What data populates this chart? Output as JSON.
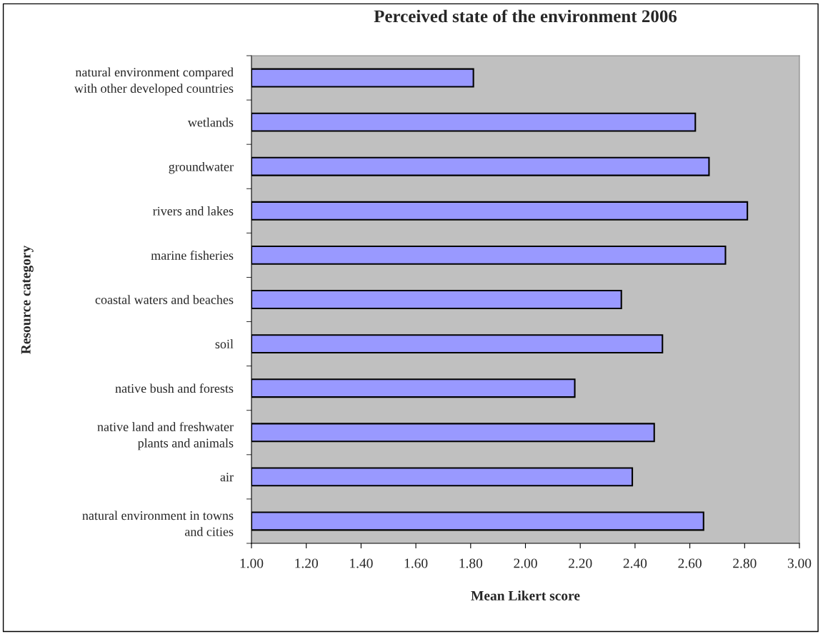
{
  "chart_data": {
    "type": "bar",
    "orientation": "horizontal",
    "title": "Perceived state of the environment 2006",
    "xlabel": "Mean Likert score",
    "ylabel": "Resource category",
    "categories": [
      "natural environment compared\nwith other developed countries",
      "wetlands",
      "groundwater",
      "rivers and lakes",
      "marine fisheries",
      "coastal waters and beaches",
      "soil",
      "native bush and forests",
      "native land and freshwater\nplants and animals",
      "air",
      "natural environment in towns\nand cities"
    ],
    "values": [
      1.81,
      2.62,
      2.67,
      2.81,
      2.73,
      2.35,
      2.5,
      2.18,
      2.47,
      2.39,
      2.65
    ],
    "color": "#9999ff",
    "xlim": [
      1.0,
      3.0
    ],
    "xticks": [
      {
        "value": 1.0,
        "label": "1.00"
      },
      {
        "value": 1.2,
        "label": "1.20"
      },
      {
        "value": 1.4,
        "label": "1.40"
      },
      {
        "value": 1.6,
        "label": "1.60"
      },
      {
        "value": 1.8,
        "label": "1.80"
      },
      {
        "value": 2.0,
        "label": "2.00"
      },
      {
        "value": 2.2,
        "label": "2.20"
      },
      {
        "value": 2.4,
        "label": "2.40"
      },
      {
        "value": 2.6,
        "label": "2.60"
      },
      {
        "value": 2.8,
        "label": "2.80"
      },
      {
        "value": 3.0,
        "label": "3.00"
      }
    ],
    "grid": false,
    "legend": false
  }
}
